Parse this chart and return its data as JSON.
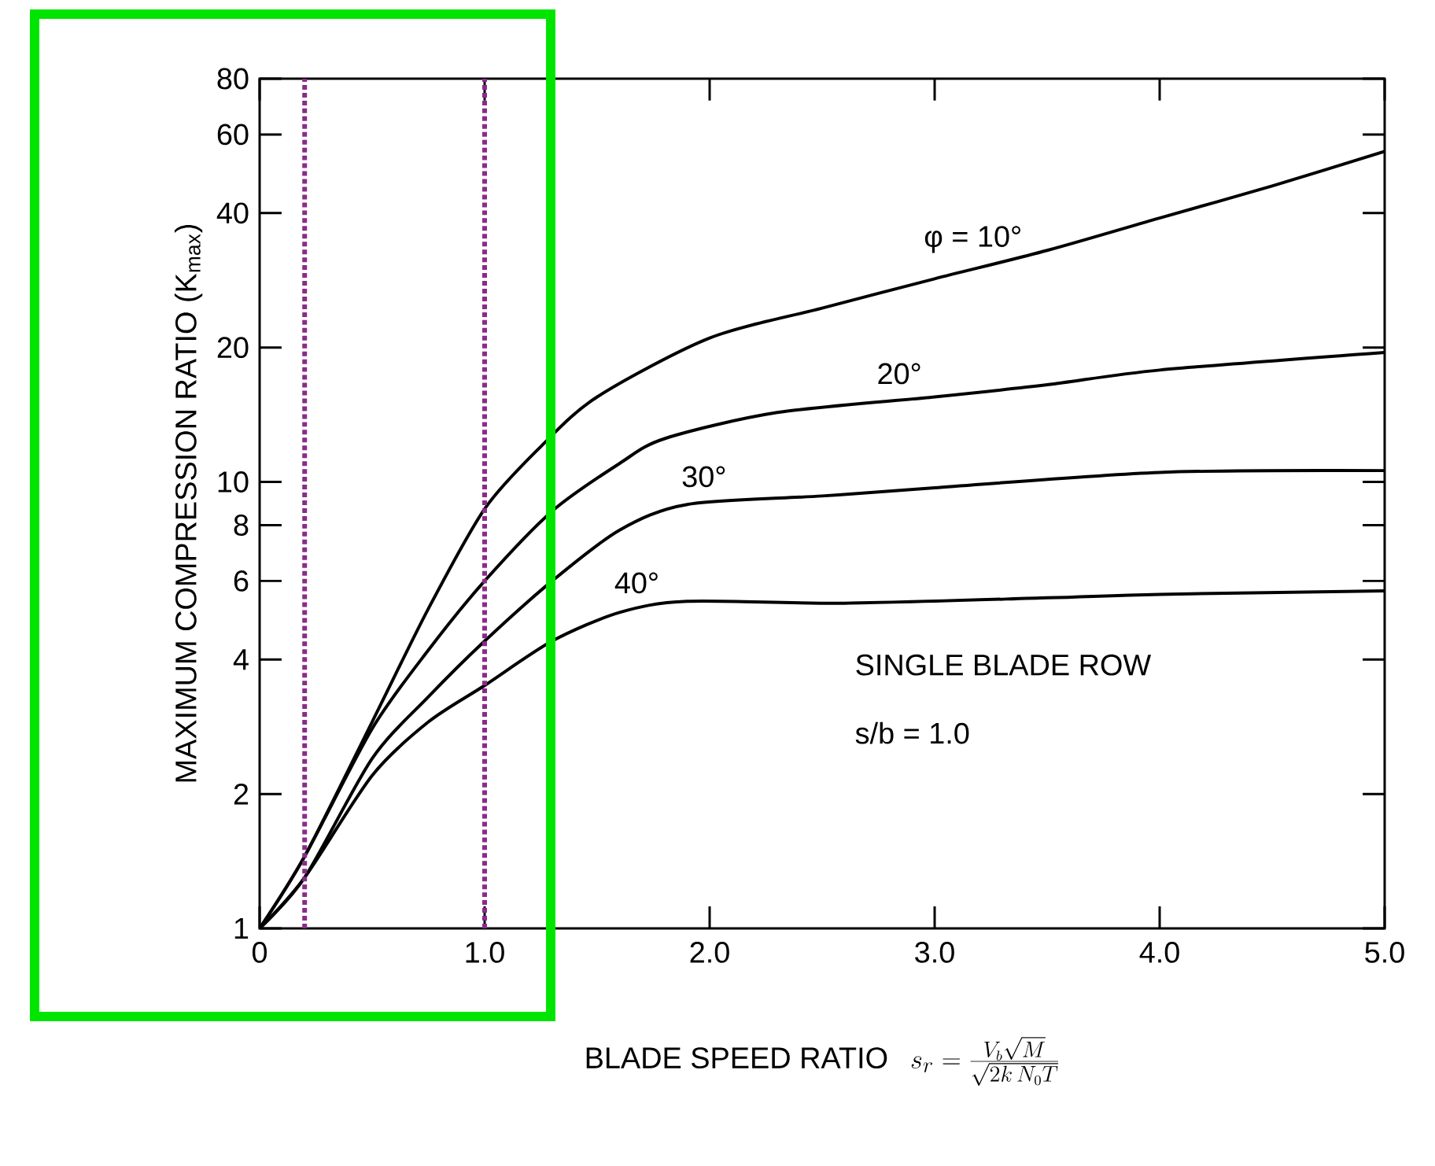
{
  "chart_data": {
    "type": "line",
    "xlabel": "BLADE SPEED RATIO",
    "ylabel": "MAXIMUM COMPRESSION RATIO (K$_{max}$)",
    "annotations": [
      "SINGLE BLADE ROW",
      "s/b = 1.0",
      "s_{r} = \\frac{V_{b}\\sqrt{M}}{\\sqrt{2k\\,N_{0}T}}"
    ],
    "log": "y",
    "xlim": [
      0,
      5
    ],
    "ylim": [
      1,
      80
    ],
    "xticks": [
      0,
      {
        "value": 1,
        "label": "1.0"
      },
      {
        "value": 2,
        "label": "2.0"
      },
      {
        "value": 3,
        "label": "3.0"
      },
      {
        "value": 4,
        "label": "4.0"
      },
      {
        "value": 5,
        "label": "5.0"
      }
    ],
    "yticks": [
      1,
      2,
      4,
      6,
      8,
      10,
      20,
      40,
      60,
      80
    ],
    "series": [
      {
        "name": "φ = 10°",
        "color": "#000000",
        "x": [
          0,
          0.2,
          0.5,
          0.75,
          1.0,
          1.25,
          1.5,
          2.0,
          2.5,
          3.0,
          3.5,
          4.0,
          4.5,
          5.0
        ],
        "values": [
          1,
          1.45,
          2.9,
          5.2,
          8.7,
          12,
          15.5,
          21,
          24.5,
          28.5,
          33,
          39,
          46,
          55
        ]
      },
      {
        "name": "20°",
        "color": "#000000",
        "x": [
          0,
          0.2,
          0.5,
          0.75,
          1.0,
          1.3,
          1.6,
          1.8,
          2.3,
          3.0,
          3.5,
          4.0,
          5.0
        ],
        "values": [
          1,
          1.45,
          2.8,
          4.2,
          6.0,
          8.6,
          11,
          12.5,
          14.3,
          15.5,
          16.5,
          17.8,
          19.5
        ]
      },
      {
        "name": "30°",
        "color": "#000000",
        "x": [
          0,
          0.2,
          0.5,
          0.75,
          1.0,
          1.3,
          1.6,
          1.9,
          2.5,
          3.0,
          4.0,
          5.0
        ],
        "values": [
          1,
          1.3,
          2.4,
          3.3,
          4.4,
          6.0,
          7.8,
          8.9,
          9.3,
          9.7,
          10.5,
          10.6
        ]
      },
      {
        "name": "40°",
        "color": "#000000",
        "x": [
          0,
          0.2,
          0.5,
          0.75,
          1.0,
          1.3,
          1.6,
          1.9,
          2.6,
          3.5,
          4.0,
          5.0
        ],
        "values": [
          1,
          1.3,
          2.2,
          2.9,
          3.5,
          4.4,
          5.1,
          5.4,
          5.35,
          5.5,
          5.6,
          5.7
        ]
      }
    ],
    "ref_lines": [
      {
        "axis": "x",
        "value": 0.2,
        "color": "#8b2a8b",
        "line_style": "dotted"
      },
      {
        "axis": "x",
        "value": 1.0,
        "color": "#8b2a8b",
        "line_style": "dotted"
      }
    ]
  }
}
